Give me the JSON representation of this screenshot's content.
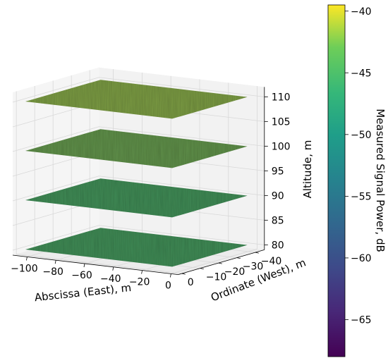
{
  "chart_data": {
    "type": "surface-3d",
    "title": "",
    "xlabel": "Abscissa (East), m",
    "ylabel": "Ordinate (West), m",
    "zlabel": "Altitude, m",
    "x_ticks": [
      -100,
      -80,
      -60,
      -40,
      -20,
      0
    ],
    "y_ticks": [
      -40,
      -30,
      -20,
      -10,
      0
    ],
    "z_ticks": [
      80,
      85,
      90,
      95,
      100,
      105,
      110
    ],
    "xlim": [
      -110,
      5
    ],
    "ylim": [
      -45,
      2
    ],
    "zlim": [
      79,
      112
    ],
    "grid": true,
    "colormap": "viridis",
    "colorbar": {
      "label": "Measured Signal Power, dB",
      "min": -68,
      "max": -39.5,
      "ticks": [
        -40,
        -45,
        -50,
        -55,
        -60,
        -65
      ],
      "tick_labels": [
        "−40",
        "−45",
        "−50",
        "−55",
        "−60",
        "−65"
      ]
    },
    "layers": [
      {
        "altitude": 80,
        "typical_power_db": -52
      },
      {
        "altitude": 90,
        "typical_power_db": -52
      },
      {
        "altitude": 100,
        "typical_power_db": -49
      },
      {
        "altitude": 110,
        "typical_power_db": -47
      }
    ]
  },
  "colors": {
    "layer_110": "#7a9a43",
    "layer_100": "#5f8f49",
    "layer_90": "#3f8a55",
    "layer_80": "#3f8a55",
    "pane": "#f2f2f2",
    "grid": "#d8d8d8"
  }
}
